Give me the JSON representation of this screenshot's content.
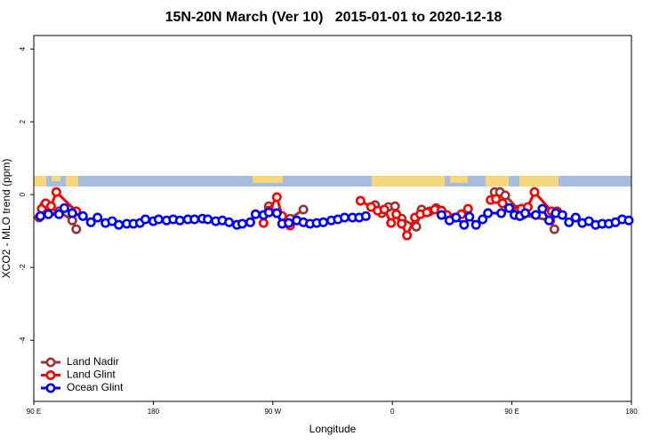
{
  "chart_data": {
    "type": "line",
    "title": "15N-20N March (Ver 10)   2015-01-01 to 2020-12-18",
    "x_label": "Longitude",
    "y_label": "XCO2 - MLO trend (ppm)",
    "xlim": [
      90,
      540
    ],
    "ylim": [
      -5.68,
      4.37
    ],
    "xticks": [
      {
        "value": 90,
        "label": "90 E"
      },
      180,
      {
        "value": 270,
        "label": "90 W"
      },
      {
        "value": 360,
        "label": "0"
      },
      {
        "value": 450,
        "label": "90 E"
      },
      {
        "value": 540,
        "label": "180"
      }
    ],
    "yticks": [
      -4,
      -2,
      0,
      2,
      4
    ],
    "legend": "bottom-left",
    "series": [
      {
        "name": "Land Nadir",
        "color": "#9b3333",
        "x": [
          94,
          98,
          103,
          109,
          119,
          122,
          null,
          267,
          273,
          283,
          293,
          null,
          347,
          352,
          357,
          362,
          367,
          378,
          382,
          388,
          393,
          null,
          437,
          441,
          445,
          455,
          458,
          479,
          482
        ],
        "values": [
          -0.63,
          -0.29,
          -0.46,
          -0.46,
          -0.71,
          -0.95,
          null,
          -0.32,
          -0.51,
          -0.66,
          -0.41,
          null,
          -0.29,
          -0.51,
          -0.34,
          -0.32,
          -0.66,
          -0.88,
          -0.41,
          -0.46,
          -0.37,
          null,
          0.07,
          0.07,
          -0.02,
          -0.41,
          -0.56,
          -0.71,
          -0.95
        ]
      },
      {
        "name": "Land Glint",
        "color": "#ff0000",
        "x": [
          96,
          99,
          103,
          107,
          122,
          null,
          263,
          267,
          273,
          277,
          283,
          null,
          336,
          344,
          349,
          354,
          359,
          363,
          367,
          371,
          377,
          381,
          386,
          392,
          397,
          401,
          407,
          412,
          417,
          null,
          434,
          438,
          443,
          457,
          462,
          467,
          480,
          484
        ],
        "values": [
          -0.39,
          -0.24,
          -0.32,
          0.07,
          -0.46,
          null,
          -0.78,
          -0.44,
          -0.07,
          -0.59,
          -0.85,
          null,
          -0.17,
          -0.34,
          -0.44,
          -0.41,
          -0.78,
          -0.54,
          -0.8,
          -1.12,
          -0.63,
          -0.54,
          -0.49,
          -0.41,
          -0.44,
          -0.56,
          -0.63,
          -0.54,
          -0.39,
          null,
          -0.15,
          -0.12,
          -0.24,
          -0.39,
          -0.34,
          0.07,
          -0.46,
          -0.46
        ]
      },
      {
        "name": "Ocean Glint",
        "color": "#0000ff",
        "x": [
          95,
          101,
          109,
          113,
          119,
          127,
          133,
          138,
          144,
          149,
          154,
          160,
          165,
          170,
          174,
          180,
          184,
          190,
          195,
          200,
          206,
          211,
          217,
          221,
          227,
          232,
          237,
          243,
          247,
          253,
          257,
          263,
          267,
          273,
          277,
          282,
          288,
          293,
          298,
          303,
          308,
          314,
          319,
          324,
          330,
          335,
          340,
          null,
          397,
          403,
          408,
          414,
          418,
          423,
          428,
          432,
          442,
          448,
          452,
          456,
          460,
          468,
          473,
          478,
          483,
          488,
          493,
          498,
          503,
          508,
          513,
          518,
          523,
          528,
          533,
          538
        ],
        "values": [
          -0.59,
          -0.54,
          -0.54,
          -0.37,
          -0.51,
          -0.59,
          -0.76,
          -0.63,
          -0.78,
          -0.73,
          -0.83,
          -0.8,
          -0.8,
          -0.78,
          -0.68,
          -0.73,
          -0.68,
          -0.71,
          -0.68,
          -0.71,
          -0.68,
          -0.68,
          -0.66,
          -0.68,
          -0.73,
          -0.71,
          -0.76,
          -0.83,
          -0.8,
          -0.76,
          -0.54,
          -0.56,
          -0.49,
          -0.51,
          -0.8,
          -0.78,
          -0.71,
          -0.76,
          -0.8,
          -0.78,
          -0.76,
          -0.71,
          -0.68,
          -0.63,
          -0.63,
          -0.63,
          -0.59,
          null,
          -0.56,
          -0.71,
          -0.63,
          -0.83,
          -0.61,
          -0.83,
          -0.68,
          -0.51,
          -0.51,
          -0.37,
          -0.56,
          -0.59,
          -0.51,
          -0.56,
          -0.39,
          -0.71,
          -0.51,
          -0.56,
          -0.76,
          -0.63,
          -0.78,
          -0.73,
          -0.83,
          -0.8,
          -0.8,
          -0.76,
          -0.68,
          -0.71
        ]
      }
    ]
  }
}
